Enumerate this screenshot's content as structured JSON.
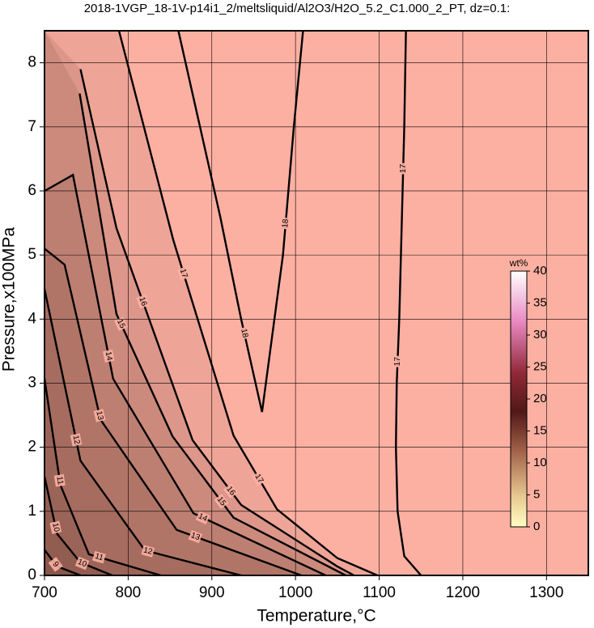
{
  "chart_data": {
    "type": "contour",
    "title": "2018-1VGP_18-1V-p14i1_2/meltsliquid/Al2O3/H2O_5.2_C1.000_2_PT, dz=0.1:",
    "x_label": "Temperature,°C",
    "y_label": "Pressure,x100MPa",
    "xlim": [
      700,
      1350
    ],
    "ylim": [
      0,
      8.5
    ],
    "xticks": [
      700,
      800,
      900,
      1000,
      1100,
      1200,
      1300
    ],
    "yticks": [
      0,
      1,
      2,
      3,
      4,
      5,
      6,
      7,
      8
    ],
    "grid": true,
    "background_color": "#fcb0a2",
    "colorbar": {
      "label": "wt%",
      "lim": [
        0,
        40
      ],
      "ticks": [
        0,
        5,
        10,
        15,
        20,
        25,
        30,
        35,
        40
      ]
    },
    "contours": [
      {
        "level": 9,
        "x": [
          700,
          715,
          743
        ],
        "y": [
          0.4,
          0.14,
          0
        ]
      },
      {
        "level": 10,
        "x": [
          700,
          715,
          743,
          781
        ],
        "y": [
          1.54,
          0.65,
          0.2,
          0
        ]
      },
      {
        "level": 11,
        "x": [
          700,
          719,
          753,
          839
        ],
        "y": [
          3.07,
          1.41,
          0.33,
          0
        ]
      },
      {
        "level": 12,
        "x": [
          700,
          743,
          820,
          935
        ],
        "y": [
          4.47,
          1.79,
          0.39,
          0
        ]
      },
      {
        "level": 13,
        "x": [
          700,
          724,
          767,
          858,
          1007
        ],
        "y": [
          5.1,
          4.85,
          2.43,
          0.71,
          0
        ]
      },
      {
        "level": 14,
        "x": [
          700,
          734,
          782,
          878,
          1036
        ],
        "y": [
          6.0,
          6.25,
          3.07,
          0.97,
          0
        ]
      },
      {
        "level": 15,
        "x": [
          742,
          786,
          853,
          926,
          1060
        ],
        "y": [
          7.52,
          4.08,
          2.17,
          0.9,
          0
        ]
      },
      {
        "level": 16,
        "x": [
          743,
          786,
          877,
          935,
          1050,
          1070
        ],
        "y": [
          7.9,
          5.42,
          2.11,
          1.1,
          0.14,
          0
        ]
      },
      {
        "level": 17,
        "x": [
          789,
          854,
          926,
          978,
          1050,
          1098
        ],
        "y": [
          8.5,
          5.23,
          2.18,
          1.03,
          0.27,
          0
        ]
      },
      {
        "level": 18,
        "x": [
          860,
          910,
          935,
          960,
          985,
          998,
          1009
        ],
        "y": [
          8.5,
          5.6,
          4.0,
          2.55,
          5.0,
          7.0,
          8.5
        ]
      },
      {
        "level": 17,
        "x": [
          1150,
          1130,
          1122,
          1120,
          1121,
          1124,
          1126,
          1128,
          1130,
          1132
        ],
        "y": [
          0,
          0.3,
          1,
          2,
          3,
          4,
          5,
          6,
          7,
          8.5
        ]
      }
    ]
  }
}
